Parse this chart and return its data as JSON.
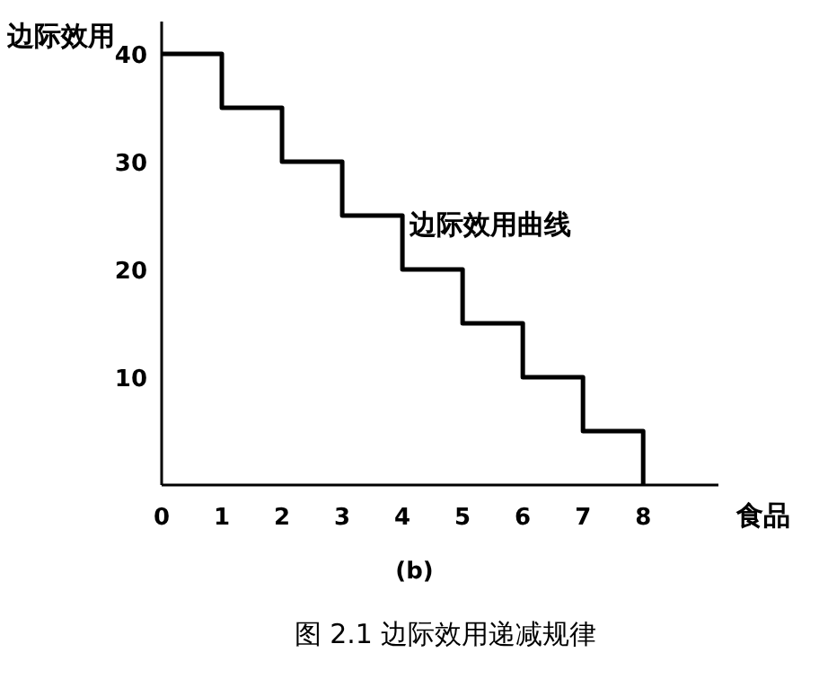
{
  "chart_data": {
    "type": "step",
    "title": "图 2.1   边际效用递减规律",
    "subtitle": "(b)",
    "xlabel": "食品",
    "ylabel": "边际效用",
    "x": [
      0,
      1,
      2,
      3,
      4,
      5,
      6,
      7,
      8
    ],
    "values": [
      40,
      35,
      30,
      25,
      20,
      15,
      10,
      5,
      0
    ],
    "color": "#000000",
    "xlim": [
      0,
      9.25
    ],
    "ylim": [
      0,
      43
    ],
    "xticks": [
      0,
      1,
      2,
      3,
      4,
      5,
      6,
      7,
      8
    ],
    "yticks": [
      10,
      20,
      30,
      40
    ],
    "annotations": [
      "边际效用曲线"
    ]
  }
}
